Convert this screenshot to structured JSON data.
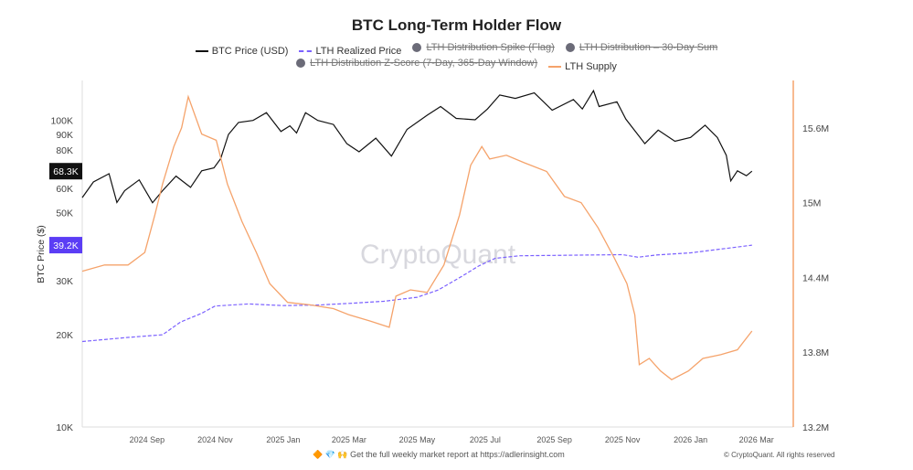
{
  "chart_data": {
    "type": "line",
    "title": "BTC Long-Term Holder Flow",
    "ylabel": "BTC Price ($)",
    "y_scale": "log",
    "ylim": [
      10000,
      135000
    ],
    "y2lim": [
      13.2,
      15.98
    ],
    "y2_unit": "M",
    "xlim": [
      "2024-07-05",
      "2026-04-03"
    ],
    "grid": false,
    "legend_position": "top",
    "watermark": "CryptoQuant",
    "x_ticks": [
      {
        "date": "2024-09-01",
        "label": "2024 Sep"
      },
      {
        "date": "2024-11-01",
        "label": "2024 Nov"
      },
      {
        "date": "2025-01-01",
        "label": "2025 Jan"
      },
      {
        "date": "2025-03-01",
        "label": "2025 Mar"
      },
      {
        "date": "2025-05-01",
        "label": "2025 May"
      },
      {
        "date": "2025-07-01",
        "label": "2025 Jul"
      },
      {
        "date": "2025-09-01",
        "label": "2025 Sep"
      },
      {
        "date": "2025-11-01",
        "label": "2025 Nov"
      },
      {
        "date": "2026-01-01",
        "label": "2026 Jan"
      },
      {
        "date": "2026-03-01",
        "label": "2026 Mar"
      }
    ],
    "y_ticks": [
      {
        "v": 10000,
        "label": "10K"
      },
      {
        "v": 20000,
        "label": "20K"
      },
      {
        "v": 30000,
        "label": "30K"
      },
      {
        "v": 50000,
        "label": "50K"
      },
      {
        "v": 60000,
        "label": "60K"
      },
      {
        "v": 80000,
        "label": "80K"
      },
      {
        "v": 90000,
        "label": "90K"
      },
      {
        "v": 100000,
        "label": "100K"
      }
    ],
    "y2_ticks": [
      {
        "v": 13.2,
        "label": "13.2M"
      },
      {
        "v": 13.8,
        "label": "13.8M"
      },
      {
        "v": 14.4,
        "label": "14.4M"
      },
      {
        "v": 15.0,
        "label": "15M"
      },
      {
        "v": 15.6,
        "label": "15.6M"
      }
    ],
    "badges": [
      {
        "series": "BTC Price (USD)",
        "value": 68300,
        "label": "68.3K",
        "color": "#111111"
      },
      {
        "series": "LTH Realized Price",
        "value": 39200,
        "label": "39.2K",
        "color": "#5b3df5"
      }
    ],
    "legend": [
      {
        "name": "BTC Price (USD)",
        "style": "line",
        "color": "#111111",
        "hidden": false
      },
      {
        "name": "LTH Realized Price",
        "style": "dashed",
        "color": "#7b61ff",
        "hidden": false
      },
      {
        "name": "LTH Distribution Spike (Flag)",
        "style": "dot",
        "color": "#6b6b78",
        "hidden": true
      },
      {
        "name": "LTH Distribution – 30-Day Sum",
        "style": "dot",
        "color": "#6b6b78",
        "hidden": true
      },
      {
        "name": "LTH Distribution Z-Score (7-Day, 365-Day Window)",
        "style": "dot",
        "color": "#6b6b78",
        "hidden": true
      },
      {
        "name": "LTH Supply",
        "style": "line",
        "color": "#f5a36b",
        "hidden": false
      }
    ],
    "series": [
      {
        "name": "BTC Price (USD)",
        "axis": "left",
        "color": "#111111",
        "points": [
          [
            "2024-07-05",
            56000
          ],
          [
            "2024-07-15",
            63000
          ],
          [
            "2024-07-29",
            67000
          ],
          [
            "2024-08-05",
            54000
          ],
          [
            "2024-08-12",
            59000
          ],
          [
            "2024-08-25",
            64000
          ],
          [
            "2024-09-06",
            53900
          ],
          [
            "2024-09-15",
            59000
          ],
          [
            "2024-09-27",
            65800
          ],
          [
            "2024-10-10",
            60500
          ],
          [
            "2024-10-20",
            68500
          ],
          [
            "2024-10-31",
            70000
          ],
          [
            "2024-11-06",
            75000
          ],
          [
            "2024-11-13",
            90000
          ],
          [
            "2024-11-22",
            98500
          ],
          [
            "2024-12-05",
            100000
          ],
          [
            "2024-12-17",
            106000
          ],
          [
            "2024-12-30",
            92000
          ],
          [
            "2025-01-07",
            96000
          ],
          [
            "2025-01-13",
            91000
          ],
          [
            "2025-01-21",
            106000
          ],
          [
            "2025-02-01",
            100000
          ],
          [
            "2025-02-15",
            97000
          ],
          [
            "2025-02-27",
            84000
          ],
          [
            "2025-03-10",
            79000
          ],
          [
            "2025-03-25",
            87500
          ],
          [
            "2025-04-08",
            76500
          ],
          [
            "2025-04-22",
            93500
          ],
          [
            "2025-05-10",
            104000
          ],
          [
            "2025-05-22",
            111000
          ],
          [
            "2025-06-05",
            101500
          ],
          [
            "2025-06-22",
            100500
          ],
          [
            "2025-07-03",
            109000
          ],
          [
            "2025-07-14",
            121000
          ],
          [
            "2025-07-28",
            118000
          ],
          [
            "2025-08-14",
            123000
          ],
          [
            "2025-08-30",
            108000
          ],
          [
            "2025-09-18",
            117000
          ],
          [
            "2025-09-26",
            109000
          ],
          [
            "2025-10-06",
            125000
          ],
          [
            "2025-10-11",
            111000
          ],
          [
            "2025-10-27",
            115000
          ],
          [
            "2025-11-04",
            101000
          ],
          [
            "2025-11-21",
            84000
          ],
          [
            "2025-12-03",
            93000
          ],
          [
            "2025-12-18",
            85500
          ],
          [
            "2026-01-01",
            88000
          ],
          [
            "2026-01-14",
            96500
          ],
          [
            "2026-01-25",
            88000
          ],
          [
            "2026-02-02",
            77000
          ],
          [
            "2026-02-06",
            63500
          ],
          [
            "2026-02-12",
            68500
          ],
          [
            "2026-02-20",
            66000
          ],
          [
            "2026-02-25",
            68300
          ]
        ]
      },
      {
        "name": "LTH Realized Price",
        "axis": "left",
        "color": "#7b61ff",
        "points": [
          [
            "2024-07-05",
            19000
          ],
          [
            "2024-08-15",
            19600
          ],
          [
            "2024-09-15",
            20000
          ],
          [
            "2024-10-01",
            22000
          ],
          [
            "2024-10-20",
            23500
          ],
          [
            "2024-11-01",
            24800
          ],
          [
            "2024-12-01",
            25200
          ],
          [
            "2025-01-01",
            24900
          ],
          [
            "2025-02-01",
            25000
          ],
          [
            "2025-03-01",
            25300
          ],
          [
            "2025-04-01",
            25700
          ],
          [
            "2025-05-01",
            26500
          ],
          [
            "2025-05-20",
            28000
          ],
          [
            "2025-06-10",
            31000
          ],
          [
            "2025-06-25",
            33500
          ],
          [
            "2025-07-10",
            35500
          ],
          [
            "2025-08-01",
            36200
          ],
          [
            "2025-09-01",
            36300
          ],
          [
            "2025-10-01",
            36400
          ],
          [
            "2025-11-01",
            36500
          ],
          [
            "2025-11-15",
            35800
          ],
          [
            "2025-12-01",
            36400
          ],
          [
            "2026-01-01",
            37000
          ],
          [
            "2026-02-01",
            38200
          ],
          [
            "2026-02-25",
            39200
          ]
        ]
      },
      {
        "name": "LTH Supply",
        "axis": "right",
        "color": "#f5a36b",
        "points": [
          [
            "2024-07-05",
            14.45
          ],
          [
            "2024-07-25",
            14.5
          ],
          [
            "2024-08-15",
            14.5
          ],
          [
            "2024-08-30",
            14.6
          ],
          [
            "2024-09-08",
            14.9
          ],
          [
            "2024-09-15",
            15.15
          ],
          [
            "2024-09-25",
            15.45
          ],
          [
            "2024-10-02",
            15.6
          ],
          [
            "2024-10-08",
            15.85
          ],
          [
            "2024-10-12",
            15.75
          ],
          [
            "2024-10-20",
            15.55
          ],
          [
            "2024-11-02",
            15.5
          ],
          [
            "2024-11-12",
            15.15
          ],
          [
            "2024-11-25",
            14.85
          ],
          [
            "2024-12-08",
            14.6
          ],
          [
            "2024-12-20",
            14.35
          ],
          [
            "2025-01-05",
            14.2
          ],
          [
            "2025-01-25",
            14.18
          ],
          [
            "2025-02-15",
            14.15
          ],
          [
            "2025-03-01",
            14.1
          ],
          [
            "2025-03-20",
            14.05
          ],
          [
            "2025-04-06",
            14.0
          ],
          [
            "2025-04-12",
            14.25
          ],
          [
            "2025-04-25",
            14.3
          ],
          [
            "2025-05-10",
            14.28
          ],
          [
            "2025-05-25",
            14.5
          ],
          [
            "2025-06-08",
            14.9
          ],
          [
            "2025-06-18",
            15.3
          ],
          [
            "2025-06-28",
            15.45
          ],
          [
            "2025-07-05",
            15.35
          ],
          [
            "2025-07-20",
            15.38
          ],
          [
            "2025-08-05",
            15.32
          ],
          [
            "2025-08-25",
            15.25
          ],
          [
            "2025-09-10",
            15.05
          ],
          [
            "2025-09-25",
            15.0
          ],
          [
            "2025-10-10",
            14.8
          ],
          [
            "2025-10-25",
            14.55
          ],
          [
            "2025-11-05",
            14.35
          ],
          [
            "2025-11-12",
            14.1
          ],
          [
            "2025-11-16",
            13.7
          ],
          [
            "2025-11-25",
            13.75
          ],
          [
            "2025-12-05",
            13.65
          ],
          [
            "2025-12-15",
            13.58
          ],
          [
            "2025-12-30",
            13.65
          ],
          [
            "2026-01-12",
            13.75
          ],
          [
            "2026-01-28",
            13.78
          ],
          [
            "2026-02-12",
            13.82
          ],
          [
            "2026-02-25",
            13.97
          ]
        ]
      }
    ]
  },
  "footer": {
    "text": "Get the full weekly market report at",
    "link": "https://adlerinsight.com",
    "copyright": "© CryptoQuant. All rights reserved",
    "emojis": "🔶 💎 🙌"
  }
}
